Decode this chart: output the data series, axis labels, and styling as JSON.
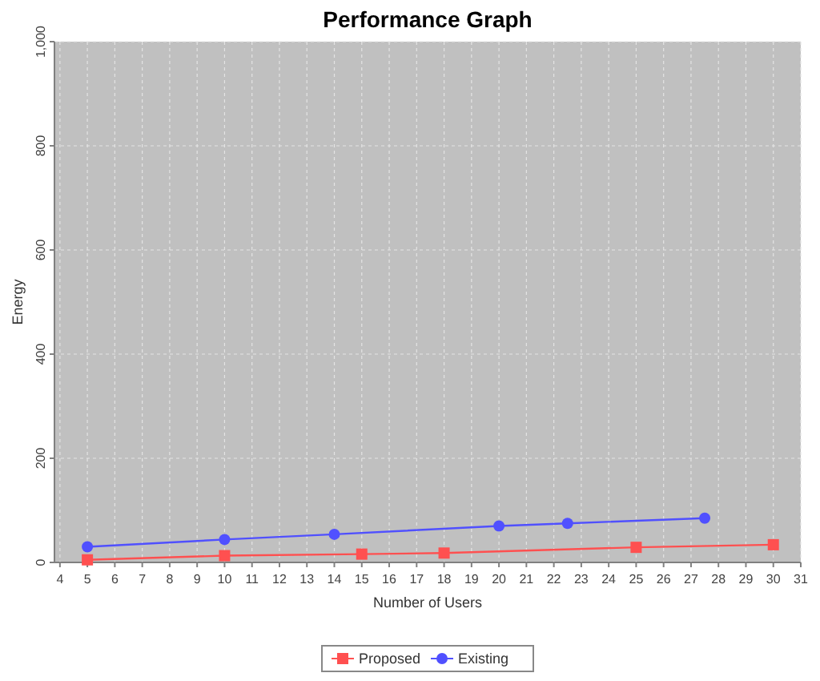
{
  "chart_data": {
    "type": "line",
    "title": "Performance Graph",
    "xlabel": "Number of Users",
    "ylabel": "Energy",
    "xlim": [
      3.8,
      31
    ],
    "xticks": [
      4,
      5,
      6,
      7,
      8,
      9,
      10,
      11,
      12,
      13,
      14,
      15,
      16,
      17,
      18,
      19,
      20,
      21,
      22,
      23,
      24,
      25,
      26,
      27,
      28,
      29,
      30,
      31
    ],
    "ylim": [
      0,
      1000
    ],
    "yticks": [
      0,
      200,
      400,
      600,
      800,
      {
        "value": 1000,
        "label": "1,000"
      }
    ],
    "grid": true,
    "legend": "bottom",
    "series": [
      {
        "name": "Proposed",
        "color": "#ff5050",
        "marker": "square",
        "x": [
          5,
          10,
          15,
          18,
          25,
          30
        ],
        "values": [
          5,
          13,
          16,
          18,
          29,
          34
        ]
      },
      {
        "name": "Existing",
        "color": "#5050ff",
        "marker": "circle",
        "x": [
          5,
          10,
          14,
          20,
          22.5,
          27.5
        ],
        "values": [
          30,
          44,
          54,
          70,
          75,
          85
        ]
      }
    ]
  }
}
